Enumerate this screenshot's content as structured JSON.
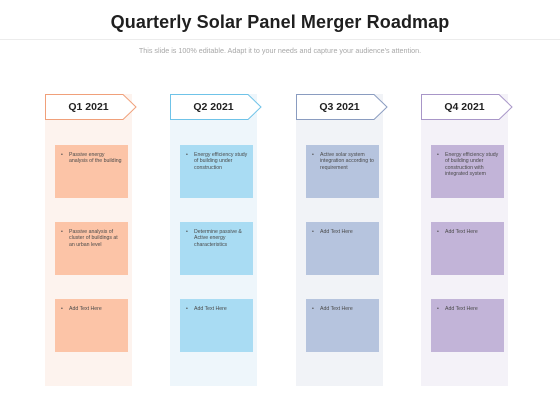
{
  "slide": {
    "title": "Quarterly Solar Panel Merger  Roadmap",
    "subtitle": "This slide is 100% editable. Adapt it to your needs and capture your audience's attention."
  },
  "colors": {
    "q1_accent": "#f0a07a",
    "q2_accent": "#6fc3e8",
    "q3_accent": "#8a9cc0",
    "q4_accent": "#a896c8"
  },
  "quarters": [
    {
      "label": "Q1 2021",
      "items": [
        "Passive energy analysis of the building",
        "Passive analysis of cluster of buildings at an urban level",
        "Add Text Here"
      ]
    },
    {
      "label": "Q2 2021",
      "items": [
        "Energy efficiency study of building under construction",
        "Determine  passive & Active energy characteristics",
        "Add Text Here"
      ]
    },
    {
      "label": "Q3 2021",
      "items": [
        "Active solar system integration  according to requirement",
        "Add Text Here",
        "Add Text Here"
      ]
    },
    {
      "label": "Q4 2021",
      "items": [
        "Energy efficiency study of building under construction with integrated system",
        "Add Text Here",
        "Add Text Here"
      ]
    }
  ]
}
